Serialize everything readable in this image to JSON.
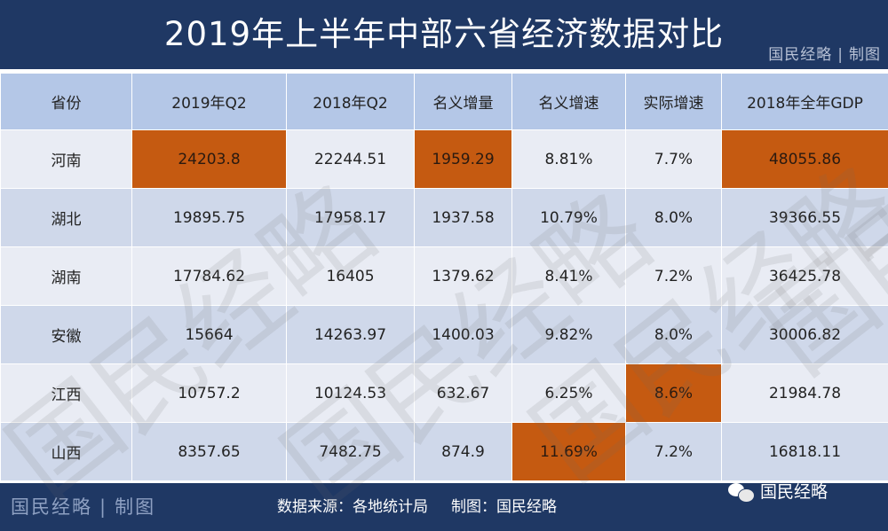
{
  "title": "2019年上半年中部六省经济数据对比",
  "brand": {
    "name": "国民经略",
    "separator": "|",
    "suffix": "制图"
  },
  "table": {
    "headers": [
      "省份",
      "2019年Q2",
      "2018年Q2",
      "名义增量",
      "名义增速",
      "实际增速",
      "2018年全年GDP"
    ],
    "rows": [
      {
        "cells": [
          "河南",
          "24203.8",
          "22244.51",
          "1959.29",
          "8.81%",
          "7.7%",
          "48055.86"
        ],
        "highlight": [
          1,
          3,
          6
        ]
      },
      {
        "cells": [
          "湖北",
          "19895.75",
          "17958.17",
          "1937.58",
          "10.79%",
          "8.0%",
          "39366.55"
        ],
        "highlight": []
      },
      {
        "cells": [
          "湖南",
          "17784.62",
          "16405",
          "1379.62",
          "8.41%",
          "7.2%",
          "36425.78"
        ],
        "highlight": []
      },
      {
        "cells": [
          "安徽",
          "15664",
          "14263.97",
          "1400.03",
          "9.82%",
          "8.0%",
          "30006.82"
        ],
        "highlight": []
      },
      {
        "cells": [
          "江西",
          "10757.2",
          "10124.53",
          "632.67",
          "6.25%",
          "8.6%",
          "21984.78"
        ],
        "highlight": [
          5
        ]
      },
      {
        "cells": [
          "山西",
          "8357.65",
          "7482.75",
          "874.9",
          "11.69%",
          "7.2%",
          "16818.11"
        ],
        "highlight": [
          4
        ]
      }
    ]
  },
  "footer": {
    "brand_name": "国民经略",
    "brand_separator": "|",
    "brand_suffix": "制图",
    "source": "数据来源：各地统计局",
    "credit": "制图：国民经略",
    "wechat_name": "国民经略",
    "wechat_icon": "wechat-icon"
  },
  "colors": {
    "header_bar": "#1f3864",
    "table_header": "#b4c7e7",
    "row_light": "#e9ecf4",
    "row_dark": "#cfd8ea",
    "highlight": "#c55a11"
  },
  "watermark": "国民经略"
}
